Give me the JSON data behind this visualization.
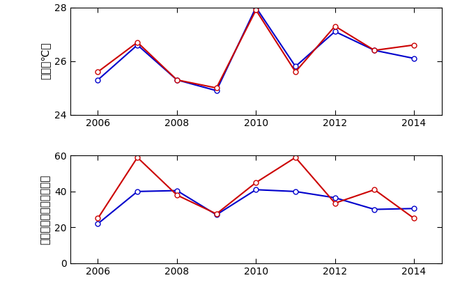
{
  "years": [
    2006,
    2007,
    2008,
    2009,
    2010,
    2011,
    2012,
    2013,
    2014
  ],
  "temp_blue": [
    25.3,
    26.6,
    25.3,
    24.9,
    28.0,
    25.8,
    27.1,
    26.4,
    26.1
  ],
  "temp_red": [
    25.6,
    26.7,
    25.3,
    25.0,
    27.9,
    25.6,
    27.3,
    26.4,
    26.6
  ],
  "rate_blue": [
    22.0,
    40.0,
    40.5,
    27.0,
    41.0,
    40.0,
    36.5,
    30.0,
    30.5
  ],
  "rate_red": [
    25.0,
    59.0,
    38.0,
    27.5,
    45.0,
    59.0,
    33.5,
    41.0,
    25.0
  ],
  "temp_ylabel": "気温（℃）",
  "rate_ylabel": "白未熟粒発生割合（％）",
  "temp_ylim": [
    24,
    28
  ],
  "rate_ylim": [
    0,
    60
  ],
  "temp_yticks": [
    24,
    26,
    28
  ],
  "rate_yticks": [
    0,
    20,
    40,
    60
  ],
  "xticks": [
    2006,
    2008,
    2010,
    2012,
    2014
  ],
  "xlim": [
    2005.3,
    2014.7
  ],
  "color_blue": "#0000cc",
  "color_red": "#cc0000",
  "line_width": 1.5,
  "marker": "o",
  "marker_size": 5,
  "marker_facecolor": "white"
}
